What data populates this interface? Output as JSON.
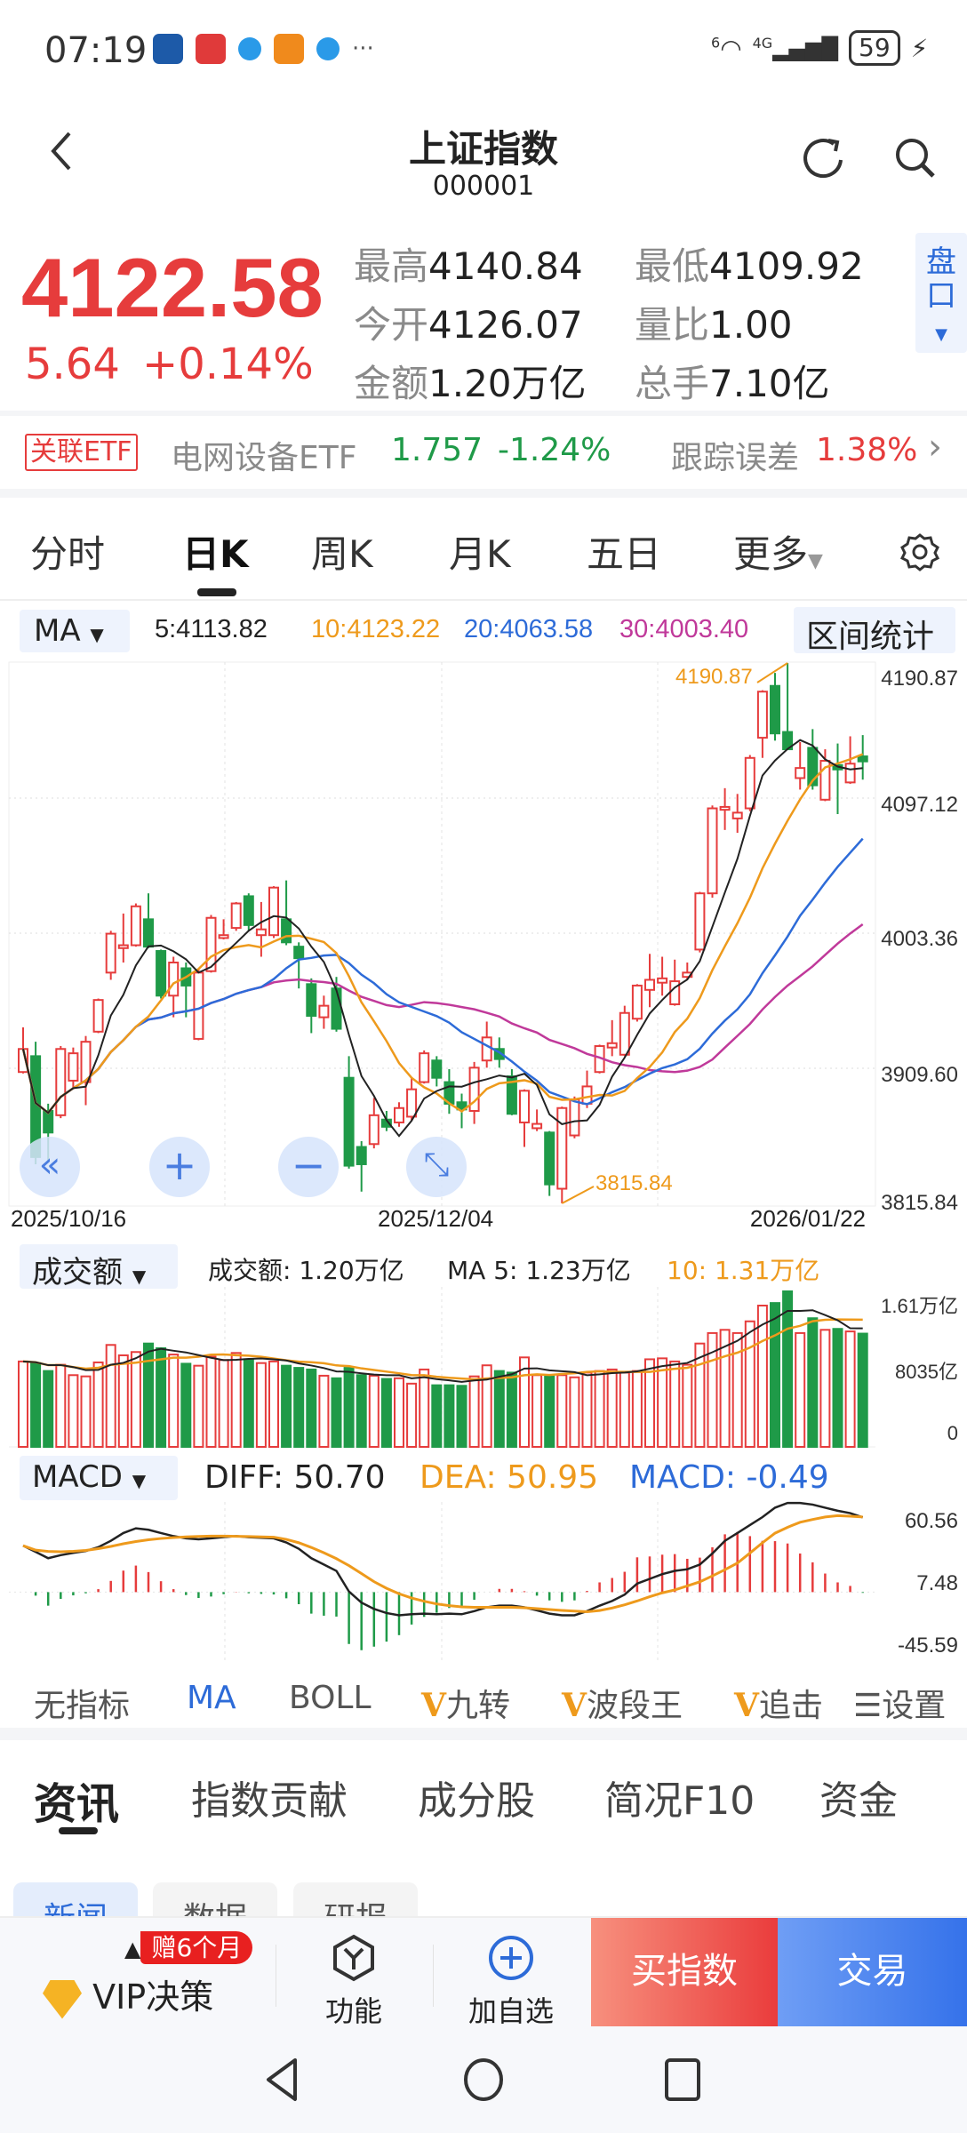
{
  "status_bar": {
    "time": "07:19",
    "network": "4G",
    "wifi_label": "6",
    "battery": "59"
  },
  "header": {
    "title": "上证指数",
    "code": "000001"
  },
  "quote": {
    "price": "4122.58",
    "change": "5.64",
    "change_pct": "+0.14%",
    "high_label": "最高",
    "high": "4140.84",
    "low_label": "最低",
    "low": "4109.92",
    "open_label": "今开",
    "open": "4126.07",
    "vol_ratio_label": "量比",
    "vol_ratio": "1.00",
    "amount_label": "金额",
    "amount": "1.20万亿",
    "turnover_label": "总手",
    "turnover": "7.10亿",
    "panel_tab": "盘口"
  },
  "etf": {
    "tag": "关联ETF",
    "name": "电网设备ETF",
    "price": "1.757",
    "change_pct": "-1.24%",
    "tracking_label": "跟踪误差",
    "tracking": "1.38%"
  },
  "period_tabs": [
    "分时",
    "日K",
    "周K",
    "月K",
    "五日",
    "更多"
  ],
  "active_period": "日K",
  "ma_legend": {
    "selector": "MA",
    "ma5": "5:4113.82",
    "ma10": "10:4123.22",
    "ma20": "20:4063.58",
    "ma30": "30:4003.40",
    "range_stats": "区间统计"
  },
  "colors": {
    "up": "#e63c3c",
    "down": "#1f9a48",
    "ma5": "#222222",
    "ma10": "#ee9a1c",
    "ma20": "#2d6bd8",
    "ma30": "#c0399a"
  },
  "chart_data": [
    {
      "type": "candlestick",
      "y_axis_ticks": [
        "4190.87",
        "4097.12",
        "4003.36",
        "3909.60",
        "3815.84"
      ],
      "ylim": [
        3815.84,
        4190.87
      ],
      "x_tick_labels": [
        "2025/10/16",
        "2025/12/04",
        "2026/01/22"
      ],
      "annotations": {
        "max": "4190.87",
        "min": "3815.84"
      },
      "series_ohlc": [
        [
          3907,
          3938,
          3906,
          3923
        ],
        [
          3918,
          3928,
          3843,
          3848
        ],
        [
          3880,
          3885,
          3845,
          3865
        ],
        [
          3877,
          3925,
          3875,
          3923
        ],
        [
          3901,
          3924,
          3895,
          3920
        ],
        [
          3900,
          3932,
          3884,
          3928
        ],
        [
          3935,
          3958,
          3934,
          3957
        ],
        [
          3976,
          4005,
          3971,
          4003
        ],
        [
          3993,
          4017,
          3983,
          3995
        ],
        [
          3995,
          4024,
          3994,
          4022
        ],
        [
          4013,
          4031,
          3993,
          3994
        ],
        [
          3991,
          3992,
          3958,
          3960
        ],
        [
          3960,
          3987,
          3945,
          3983
        ],
        [
          3979,
          3983,
          3945,
          3967
        ],
        [
          3930,
          3979,
          3929,
          3976
        ],
        [
          3977,
          4016,
          3976,
          4014
        ],
        [
          4000,
          4013,
          3999,
          4002
        ],
        [
          4007,
          4025,
          4005,
          4024
        ],
        [
          4029,
          4031,
          4005,
          4009
        ],
        [
          4002,
          4025,
          3987,
          4006
        ],
        [
          4002,
          4036,
          4000,
          4035
        ],
        [
          4013,
          4040,
          3995,
          3997
        ],
        [
          3994,
          3997,
          3965,
          3986
        ],
        [
          3968,
          3972,
          3934,
          3946
        ],
        [
          3945,
          3960,
          3937,
          3953
        ],
        [
          3965,
          3973,
          3935,
          3937
        ],
        [
          3903,
          3918,
          3840,
          3842
        ],
        [
          3855,
          3859,
          3824,
          3843
        ],
        [
          3857,
          3889,
          3854,
          3877
        ],
        [
          3874,
          3880,
          3866,
          3869
        ],
        [
          3872,
          3886,
          3869,
          3882
        ],
        [
          3876,
          3903,
          3873,
          3895
        ],
        [
          3900,
          3922,
          3899,
          3920
        ],
        [
          3915,
          3918,
          3897,
          3903
        ],
        [
          3900,
          3909,
          3878,
          3885
        ],
        [
          3886,
          3892,
          3868,
          3881
        ],
        [
          3880,
          3914,
          3871,
          3910
        ],
        [
          3915,
          3942,
          3910,
          3931
        ],
        [
          3923,
          3931,
          3910,
          3916
        ],
        [
          3904,
          3909,
          3877,
          3878
        ],
        [
          3872,
          3895,
          3855,
          3894
        ],
        [
          3868,
          3881,
          3866,
          3871
        ],
        [
          3865,
          3866,
          3821,
          3829
        ],
        [
          3826,
          3883,
          3815.84,
          3882
        ],
        [
          3863,
          3890,
          3861,
          3888
        ],
        [
          3885,
          3908,
          3882,
          3897
        ],
        [
          3907,
          3926,
          3906,
          3925
        ],
        [
          3924,
          3943,
          3918,
          3927
        ],
        [
          3919,
          3953,
          3918,
          3948
        ],
        [
          3944,
          3968,
          3942,
          3967
        ],
        [
          3964,
          3989,
          3952,
          3971
        ],
        [
          3969,
          3987,
          3960,
          3972
        ],
        [
          3954,
          3985,
          3953,
          3970
        ],
        [
          3973,
          3983,
          3971,
          3976
        ],
        [
          3992,
          4032,
          3990,
          4031
        ],
        [
          4031,
          4092,
          4028,
          4090
        ],
        [
          4089,
          4104,
          4075,
          4091
        ],
        [
          4083,
          4100,
          4073,
          4087
        ],
        [
          4090,
          4127,
          4088,
          4125
        ],
        [
          4139,
          4172,
          4125,
          4171
        ],
        [
          4175,
          4184,
          4137,
          4142
        ],
        [
          4143,
          4190.87,
          4131,
          4131
        ],
        [
          4111,
          4136,
          4103,
          4118
        ],
        [
          4132,
          4145,
          4103,
          4106
        ],
        [
          4096,
          4131,
          4095,
          4123
        ],
        [
          4120,
          4135,
          4086,
          4117
        ],
        [
          4108,
          4140,
          4107,
          4121
        ],
        [
          4126.07,
          4140.84,
          4109.92,
          4122.58
        ]
      ],
      "moving_averages": [
        "MA5",
        "MA10",
        "MA20",
        "MA30"
      ],
      "grid": true
    },
    {
      "type": "bar",
      "unit": "亿",
      "y_axis_ticks": [
        "1.61万亿",
        "8035亿",
        "0"
      ],
      "ylim": [
        0,
        16100
      ],
      "values": [
        9050,
        8880,
        8040,
        8700,
        7600,
        7470,
        8950,
        10800,
        9700,
        10050,
        10950,
        10450,
        9780,
        8810,
        8600,
        9550,
        9200,
        9950,
        9280,
        8880,
        9050,
        8600,
        8370,
        8200,
        7540,
        7270,
        8370,
        7600,
        7540,
        7200,
        7270,
        6700,
        8200,
        6530,
        6530,
        6470,
        7470,
        8640,
        8040,
        7870,
        9480,
        7600,
        7540,
        7600,
        7370,
        7870,
        8040,
        8200,
        7870,
        8040,
        9280,
        9380,
        9050,
        8700,
        10950,
        12060,
        12400,
        12060,
        13300,
        14970,
        15240,
        16480,
        12060,
        13630,
        12400,
        12500,
        12230,
        12000
      ]
    },
    {
      "type": "line",
      "y_axis_ticks": [
        "60.56",
        "7.48",
        "-45.59"
      ],
      "ylim": [
        -45.59,
        60.56
      ],
      "series": [
        {
          "name": "DIFF",
          "values": [
            31.5,
            27.3,
            23,
            25.1,
            26.6,
            27.9,
            30.5,
            34.8,
            40.1,
            43.3,
            42.3,
            40.1,
            38,
            36.5,
            35.8,
            36.5,
            37.3,
            38,
            37.3,
            36.9,
            36.5,
            33.7,
            29.4,
            23,
            18.7,
            14.4,
            0.4,
            -7.1,
            -11.4,
            -14.2,
            -15.7,
            -15,
            -14.6,
            -15,
            -14.6,
            -15,
            -12.9,
            -10.3,
            -9.2,
            -9.2,
            -10.3,
            -12.4,
            -14.6,
            -15.7,
            -15.7,
            -12.9,
            -9.2,
            -6,
            -1.7,
            5.8,
            9,
            12.2,
            14.4,
            15.5,
            18.7,
            26.2,
            34.8,
            40.1,
            45.5,
            50.9,
            57.3,
            60.5,
            60.5,
            59.4,
            57.3,
            55.2,
            53.6,
            50.7
          ]
        },
        {
          "name": "DEA",
          "values": [
            31.5,
            28.5,
            27.6,
            27.4,
            27.7,
            28.3,
            29.5,
            31,
            32.8,
            34.3,
            35.5,
            36.4,
            37,
            37.5,
            37.8,
            38,
            38,
            37.9,
            37.7,
            37.5,
            37.3,
            35.8,
            33.5,
            30.3,
            26.7,
            22.7,
            18,
            12.6,
            7.1,
            2.6,
            -1.1,
            -4,
            -6.2,
            -8,
            -9.2,
            -10,
            -10.3,
            -10.3,
            -10.3,
            -10.3,
            -10.6,
            -11.2,
            -11.8,
            -12.4,
            -12.9,
            -13.3,
            -12.5,
            -10.8,
            -8.6,
            -6,
            -3.1,
            -0.5,
            1.5,
            4.2,
            7,
            11,
            15.2,
            19.7,
            26.5,
            33.5,
            40,
            44,
            47.4,
            49.3,
            51,
            51.9,
            51.5,
            50.95
          ]
        }
      ]
    }
  ],
  "volume_legend": {
    "selector": "成交额",
    "amount": "成交额: 1.20万亿",
    "ma5": "MA 5: 1.23万亿",
    "ma10": "10: 1.31万亿"
  },
  "macd_legend": {
    "selector": "MACD",
    "diff": "DIFF: 50.70",
    "dea": "DEA: 50.95",
    "macd": "MACD: -0.49"
  },
  "indicators": {
    "none": "无指标",
    "ma": "MA",
    "boll": "BOLL",
    "v1": "九转",
    "v2": "波段王",
    "v3": "追击",
    "settings": "设置"
  },
  "info_tabs": [
    "资讯",
    "指数贡献",
    "成分股",
    "简况F10",
    "资金"
  ],
  "sub_tabs": [
    "新闻",
    "数据",
    "研报"
  ],
  "toolbar": {
    "vip": "VIP决策",
    "badge": "赠6个月",
    "func": "功能",
    "add": "加自选",
    "buy": "买指数",
    "trade": "交易"
  }
}
